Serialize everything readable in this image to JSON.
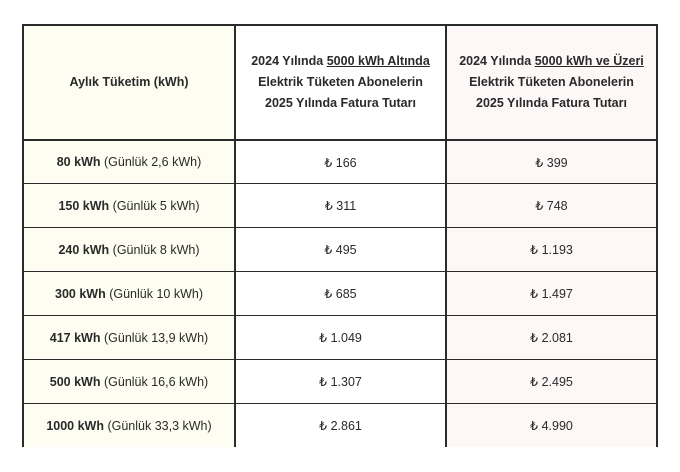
{
  "header": {
    "col1": "Aylık Tüketim (kWh)",
    "col2": {
      "line1_pre": "2024 Yılında ",
      "line1_u": "5000 kWh Altında",
      "line2": "Elektrik Tüketen Abonelerin",
      "line3": "2025 Yılında Fatura Tutarı"
    },
    "col3": {
      "line1_pre": "2024 Yılında ",
      "line1_u": "5000 kWh ve Üzeri",
      "line2": "Elektrik Tüketen Abonelerin",
      "line3": "2025 Yılında Fatura Tutarı"
    }
  },
  "rows": [
    {
      "kwh": "80 kWh",
      "daily": "(Günlük 2,6 kWh)",
      "under": "₺ 166",
      "over": "₺ 399"
    },
    {
      "kwh": "150 kWh",
      "daily": "(Günlük 5 kWh)",
      "under": "₺ 311",
      "over": "₺ 748"
    },
    {
      "kwh": "240 kWh",
      "daily": "(Günlük 8 kWh)",
      "under": "₺ 495",
      "over": "₺ 1.193"
    },
    {
      "kwh": "300 kWh",
      "daily": "(Günlük 10 kWh)",
      "under": "₺ 685",
      "over": "₺ 1.497"
    },
    {
      "kwh": "417 kWh",
      "daily": "(Günlük 13,9 kWh)",
      "under": "₺ 1.049",
      "over": "₺ 2.081"
    },
    {
      "kwh": "500 kWh",
      "daily": "(Günlük 16,6 kWh)",
      "under": "₺ 1.307",
      "over": "₺ 2.495"
    },
    {
      "kwh": "1000 kWh",
      "daily": "(Günlük 33,3 kWh)",
      "under": "₺ 2.861",
      "over": "₺ 4.990"
    }
  ]
}
